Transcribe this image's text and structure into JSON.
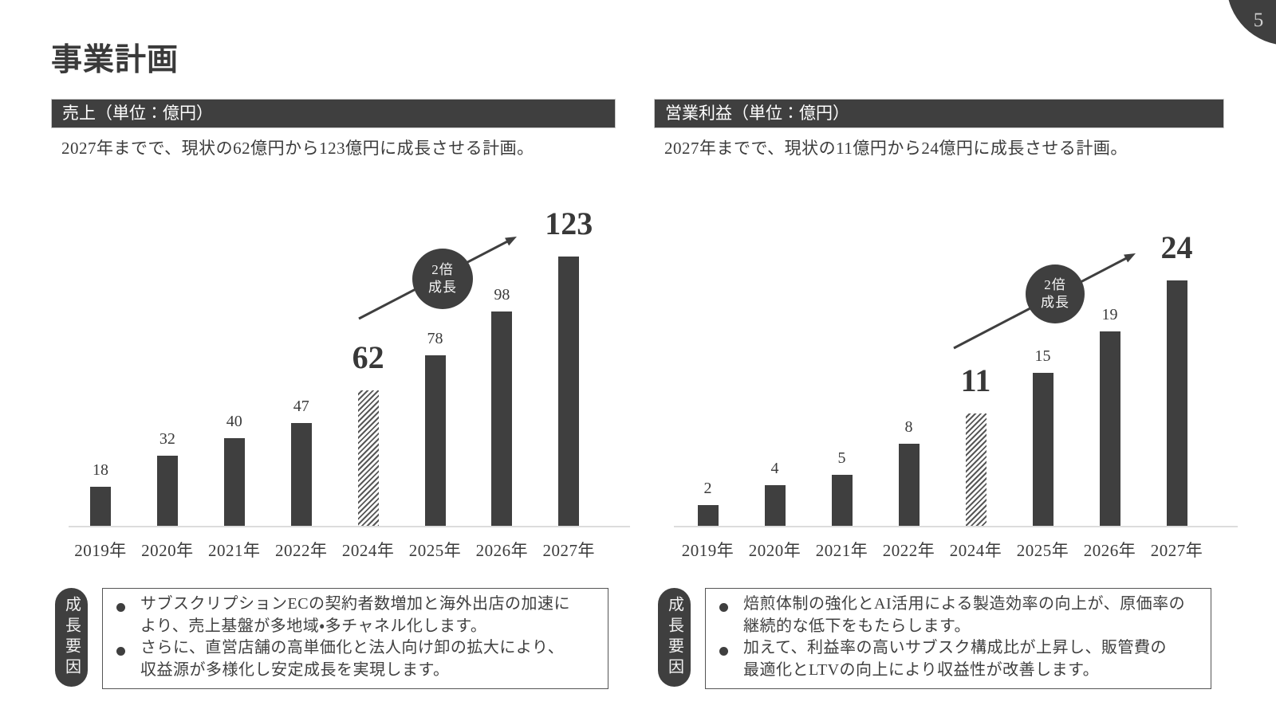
{
  "slide": {
    "title": "事業計画",
    "page_number": "5",
    "colors": {
      "dark": "#3f3f3f",
      "text": "#3b3b3b",
      "axis": "#dcdcdc",
      "badge_text": "#f5f5f5"
    }
  },
  "chart_data": [
    {
      "type": "bar",
      "title": "売上（単位：億円）",
      "subtitle": "2027年までで、現状の62億円から123億円に成長させる計画。",
      "unit": "億円",
      "categories": [
        "2019年",
        "2020年",
        "2021年",
        "2022年",
        "2024年",
        "2025年",
        "2026年",
        "2027年"
      ],
      "values": [
        18,
        32,
        40,
        47,
        62,
        78,
        98,
        123
      ],
      "hatched_index": 4,
      "emphasis_indices": [
        4,
        7
      ],
      "badge_lines": [
        "2倍",
        "成長"
      ],
      "ylim": [
        0,
        130
      ],
      "grid": false,
      "legend": "none",
      "growth_label": "成長要因",
      "bullets": [
        "サブスクリプションECの契約者数増加と海外出店の加速に\nより、売上基盤が多地域・多チャネル化します。",
        "さらに、直営店舗の高単価化と法人向け卸の拡大により、\n収益源が多様化し安定成長を実現します。"
      ]
    },
    {
      "type": "bar",
      "title": "営業利益（単位：億円）",
      "subtitle": "2027年までで、現状の11億円から24億円に成長させる計画。",
      "unit": "億円",
      "categories": [
        "2019年",
        "2020年",
        "2021年",
        "2022年",
        "2024年",
        "2025年",
        "2026年",
        "2027年"
      ],
      "values": [
        2,
        4,
        5,
        8,
        11,
        15,
        19,
        24
      ],
      "hatched_index": 4,
      "emphasis_indices": [
        4,
        7
      ],
      "badge_lines": [
        "2倍",
        "成長"
      ],
      "ylim": [
        0,
        26
      ],
      "grid": false,
      "legend": "none",
      "growth_label": "成長要因",
      "bullets": [
        "焙煎体制の強化とAI活用による製造効率の向上が、原価率の\n継続的な低下をもたらします。",
        "加えて、利益率の高いサブスク構成比が上昇し、販管費の\n最適化とLTVの向上により収益性が改善します。"
      ]
    }
  ]
}
